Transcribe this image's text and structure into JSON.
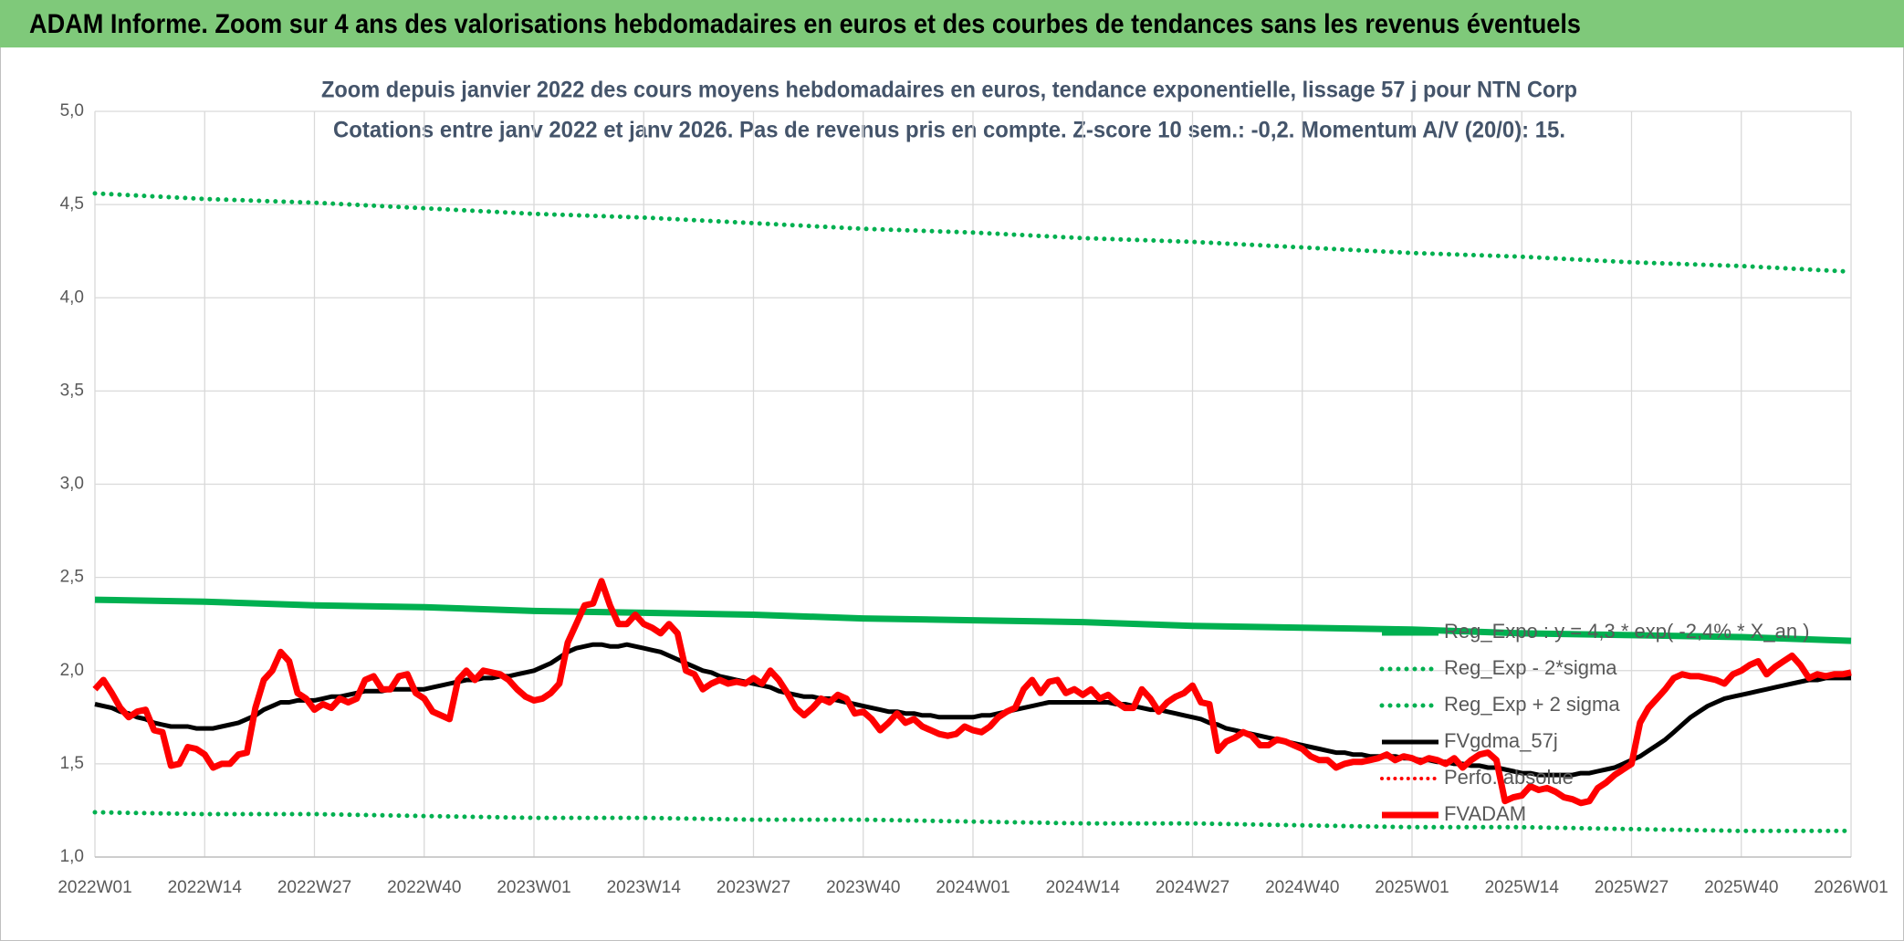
{
  "header": {
    "title": "ADAM Informe. Zoom sur 4 ans des valorisations hebdomadaires en euros et des courbes de tendances sans les revenus éventuels"
  },
  "chart_data": {
    "type": "line",
    "title": "Zoom depuis janvier 2022 des cours moyens hebdomadaires en euros, tendance exponentielle, lissage 57 j pour NTN Corp",
    "subtitle": "Cotations entre janv 2022 et janv 2026. Pas de revenus pris en compte. Z-score 10 sem.: -0,2. Momentum A/V (20/0): 15.",
    "categories": [
      "2022W01",
      null,
      null,
      null,
      null,
      null,
      null,
      null,
      null,
      null,
      null,
      null,
      null,
      "2022W14",
      null,
      null,
      null,
      null,
      null,
      null,
      null,
      null,
      null,
      null,
      null,
      null,
      "2022W27",
      null,
      null,
      null,
      null,
      null,
      null,
      null,
      null,
      null,
      null,
      null,
      null,
      "2022W40",
      null,
      null,
      null,
      null,
      null,
      null,
      null,
      null,
      null,
      null,
      null,
      null,
      "2023W01",
      null,
      null,
      null,
      null,
      null,
      null,
      null,
      null,
      null,
      null,
      null,
      null,
      "2023W14",
      null,
      null,
      null,
      null,
      null,
      null,
      null,
      null,
      null,
      null,
      null,
      null,
      "2023W27",
      null,
      null,
      null,
      null,
      null,
      null,
      null,
      null,
      null,
      null,
      null,
      null,
      "2023W40",
      null,
      null,
      null,
      null,
      null,
      null,
      null,
      null,
      null,
      null,
      null,
      null,
      "2024W01",
      null,
      null,
      null,
      null,
      null,
      null,
      null,
      null,
      null,
      null,
      null,
      null,
      "2024W14",
      null,
      null,
      null,
      null,
      null,
      null,
      null,
      null,
      null,
      null,
      null,
      null,
      "2024W27",
      null,
      null,
      null,
      null,
      null,
      null,
      null,
      null,
      null,
      null,
      null,
      null,
      "2024W40",
      null,
      null,
      null,
      null,
      null,
      null,
      null,
      null,
      null,
      null,
      null,
      null,
      "2025W01",
      null,
      null,
      null,
      null,
      null,
      null,
      null,
      null,
      null,
      null,
      null,
      null,
      "2025W14",
      null,
      null,
      null,
      null,
      null,
      null,
      null,
      null,
      null,
      null,
      null,
      null,
      "2025W27",
      null,
      null,
      null,
      null,
      null,
      null,
      null,
      null,
      null,
      null,
      null,
      null,
      "2025W40",
      null,
      null,
      null,
      null,
      null,
      null,
      null,
      null,
      null,
      null,
      null,
      null,
      "2026W01"
    ],
    "series": [
      {
        "name": "Reg_Expo : y = 4,3 * exp( -2,4% * X_an )",
        "color": "#00b050",
        "style": "solid",
        "width": 7,
        "x": [
          "2022W01",
          "2022W14",
          "2022W27",
          "2022W40",
          "2023W01",
          "2023W14",
          "2023W27",
          "2023W40",
          "2024W01",
          "2024W14",
          "2024W27",
          "2024W40",
          "2025W01",
          "2025W14",
          "2025W27",
          "2025W40",
          "2026W01"
        ],
        "values": [
          2.38,
          2.37,
          2.35,
          2.34,
          2.32,
          2.31,
          2.3,
          2.28,
          2.27,
          2.26,
          2.24,
          2.23,
          2.22,
          2.2,
          2.19,
          2.18,
          2.16
        ]
      },
      {
        "name": "Reg_Exp - 2*sigma",
        "color": "#00b050",
        "style": "dotted",
        "width": 5,
        "x": [
          "2022W01",
          "2022W14",
          "2022W27",
          "2022W40",
          "2023W01",
          "2023W14",
          "2023W27",
          "2023W40",
          "2024W01",
          "2024W14",
          "2024W27",
          "2024W40",
          "2025W01",
          "2025W14",
          "2025W27",
          "2025W40",
          "2026W01"
        ],
        "values": [
          1.24,
          1.23,
          1.23,
          1.22,
          1.21,
          1.21,
          1.2,
          1.2,
          1.19,
          1.18,
          1.18,
          1.17,
          1.16,
          1.16,
          1.15,
          1.14,
          1.14
        ]
      },
      {
        "name": "Reg_Exp + 2 sigma",
        "color": "#00b050",
        "style": "dotted",
        "width": 5,
        "x": [
          "2022W01",
          "2022W14",
          "2022W27",
          "2022W40",
          "2023W01",
          "2023W14",
          "2023W27",
          "2023W40",
          "2024W01",
          "2024W14",
          "2024W27",
          "2024W40",
          "2025W01",
          "2025W14",
          "2025W27",
          "2025W40",
          "2026W01"
        ],
        "values": [
          4.56,
          4.53,
          4.51,
          4.48,
          4.45,
          4.43,
          4.4,
          4.37,
          4.35,
          4.32,
          4.3,
          4.27,
          4.24,
          4.22,
          4.19,
          4.17,
          4.14
        ]
      },
      {
        "name": "FVgdma_57j",
        "color": "#000000",
        "style": "solid",
        "width": 5,
        "values": [
          1.82,
          1.81,
          1.8,
          1.78,
          1.77,
          1.75,
          1.74,
          1.72,
          1.71,
          1.7,
          1.7,
          1.7,
          1.69,
          1.69,
          1.69,
          1.7,
          1.71,
          1.72,
          1.74,
          1.76,
          1.79,
          1.81,
          1.83,
          1.83,
          1.84,
          1.84,
          1.84,
          1.85,
          1.86,
          1.86,
          1.87,
          1.88,
          1.89,
          1.89,
          1.89,
          1.9,
          1.9,
          1.9,
          1.9,
          1.9,
          1.91,
          1.92,
          1.93,
          1.94,
          1.95,
          1.95,
          1.96,
          1.96,
          1.97,
          1.97,
          1.98,
          1.99,
          2.0,
          2.02,
          2.04,
          2.07,
          2.1,
          2.12,
          2.13,
          2.14,
          2.14,
          2.13,
          2.13,
          2.14,
          2.13,
          2.12,
          2.11,
          2.1,
          2.08,
          2.06,
          2.04,
          2.02,
          2.0,
          1.99,
          1.97,
          1.96,
          1.95,
          1.94,
          1.93,
          1.92,
          1.91,
          1.89,
          1.88,
          1.87,
          1.86,
          1.86,
          1.85,
          1.85,
          1.84,
          1.83,
          1.82,
          1.81,
          1.8,
          1.79,
          1.78,
          1.78,
          1.77,
          1.77,
          1.76,
          1.76,
          1.75,
          1.75,
          1.75,
          1.75,
          1.75,
          1.76,
          1.76,
          1.77,
          1.78,
          1.79,
          1.8,
          1.81,
          1.82,
          1.83,
          1.83,
          1.83,
          1.83,
          1.83,
          1.83,
          1.83,
          1.83,
          1.82,
          1.82,
          1.81,
          1.8,
          1.79,
          1.79,
          1.78,
          1.77,
          1.76,
          1.75,
          1.74,
          1.72,
          1.71,
          1.69,
          1.68,
          1.67,
          1.66,
          1.65,
          1.64,
          1.63,
          1.62,
          1.61,
          1.6,
          1.59,
          1.58,
          1.57,
          1.56,
          1.56,
          1.55,
          1.55,
          1.54,
          1.54,
          1.54,
          1.54,
          1.53,
          1.53,
          1.52,
          1.52,
          1.51,
          1.51,
          1.5,
          1.5,
          1.49,
          1.49,
          1.48,
          1.48,
          1.47,
          1.46,
          1.45,
          1.45,
          1.44,
          1.44,
          1.44,
          1.44,
          1.44,
          1.45,
          1.45,
          1.46,
          1.47,
          1.48,
          1.5,
          1.52,
          1.54,
          1.57,
          1.6,
          1.63,
          1.67,
          1.71,
          1.75,
          1.78,
          1.81,
          1.83,
          1.85,
          1.86,
          1.87,
          1.88,
          1.89,
          1.9,
          1.91,
          1.92,
          1.93,
          1.94,
          1.95,
          1.95,
          1.96,
          1.96,
          1.96,
          1.96
        ]
      },
      {
        "name": "Perfo. absolue",
        "color": "#ff0000",
        "style": "dotted",
        "width": 4,
        "x": [],
        "values": []
      },
      {
        "name": "FVADAM",
        "color": "#ff0000",
        "style": "solid",
        "width": 7,
        "values": [
          1.9,
          1.95,
          1.88,
          1.8,
          1.75,
          1.78,
          1.79,
          1.68,
          1.67,
          1.49,
          1.5,
          1.59,
          1.58,
          1.55,
          1.48,
          1.5,
          1.5,
          1.55,
          1.56,
          1.8,
          1.95,
          2.0,
          2.1,
          2.05,
          1.88,
          1.85,
          1.79,
          1.82,
          1.8,
          1.85,
          1.83,
          1.85,
          1.95,
          1.97,
          1.9,
          1.9,
          1.97,
          1.98,
          1.88,
          1.85,
          1.78,
          1.76,
          1.74,
          1.95,
          2.0,
          1.95,
          2.0,
          1.99,
          1.98,
          1.95,
          1.9,
          1.86,
          1.84,
          1.85,
          1.88,
          1.93,
          2.15,
          2.25,
          2.35,
          2.36,
          2.48,
          2.35,
          2.25,
          2.25,
          2.3,
          2.25,
          2.23,
          2.2,
          2.25,
          2.2,
          2.0,
          1.98,
          1.9,
          1.93,
          1.95,
          1.93,
          1.94,
          1.93,
          1.96,
          1.93,
          2.0,
          1.95,
          1.88,
          1.8,
          1.76,
          1.8,
          1.85,
          1.83,
          1.87,
          1.85,
          1.77,
          1.78,
          1.74,
          1.68,
          1.72,
          1.77,
          1.72,
          1.74,
          1.7,
          1.68,
          1.66,
          1.65,
          1.66,
          1.7,
          1.68,
          1.67,
          1.7,
          1.75,
          1.78,
          1.8,
          1.9,
          1.95,
          1.88,
          1.94,
          1.95,
          1.88,
          1.9,
          1.87,
          1.9,
          1.85,
          1.87,
          1.83,
          1.8,
          1.8,
          1.9,
          1.85,
          1.78,
          1.83,
          1.86,
          1.88,
          1.92,
          1.83,
          1.82,
          1.57,
          1.62,
          1.64,
          1.67,
          1.65,
          1.6,
          1.6,
          1.63,
          1.62,
          1.6,
          1.58,
          1.54,
          1.52,
          1.52,
          1.48,
          1.5,
          1.51,
          1.51,
          1.52,
          1.53,
          1.55,
          1.52,
          1.54,
          1.53,
          1.51,
          1.53,
          1.52,
          1.5,
          1.53,
          1.48,
          1.52,
          1.55,
          1.56,
          1.52,
          1.3,
          1.32,
          1.33,
          1.38,
          1.36,
          1.37,
          1.35,
          1.32,
          1.31,
          1.29,
          1.3,
          1.37,
          1.4,
          1.44,
          1.47,
          1.5,
          1.72,
          1.8,
          1.85,
          1.9,
          1.96,
          1.98,
          1.97,
          1.97,
          1.96,
          1.95,
          1.93,
          1.98,
          2.0,
          2.03,
          2.05,
          1.98,
          2.02,
          2.05,
          2.08,
          2.03,
          1.96,
          1.98,
          1.97,
          1.98,
          1.98,
          1.99
        ]
      }
    ],
    "ylim": [
      1,
      5
    ],
    "yticks": [
      {
        "value": 1,
        "label": "1,0"
      },
      {
        "value": 1.5,
        "label": "1,5"
      },
      {
        "value": 2,
        "label": "2,0"
      },
      {
        "value": 2.5,
        "label": "2,5"
      },
      {
        "value": 3,
        "label": "3,0"
      },
      {
        "value": 3.5,
        "label": "3,5"
      },
      {
        "value": 4,
        "label": "4,0"
      },
      {
        "value": 4.5,
        "label": "4,5"
      },
      {
        "value": 5,
        "label": "5,0"
      }
    ],
    "grid": true,
    "legend": "right"
  }
}
